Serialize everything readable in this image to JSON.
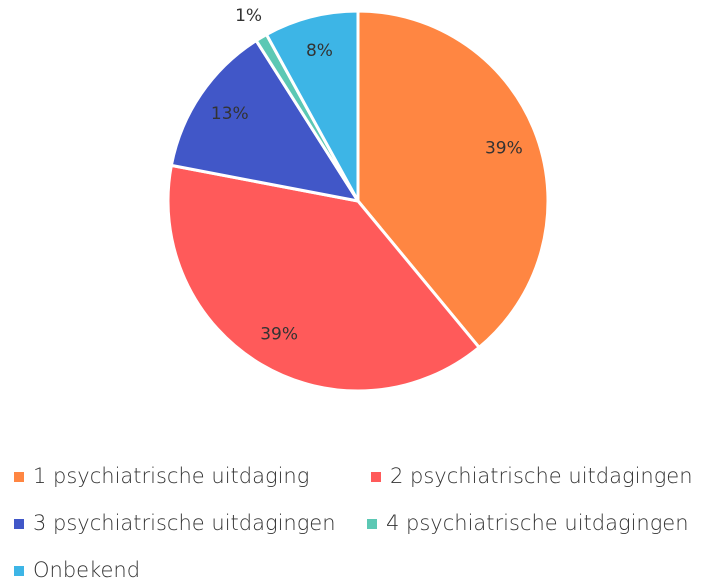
{
  "chart_data": {
    "type": "pie",
    "categories": [
      "1 psychiatrische uitdaging",
      "2 psychiatrische uitdagingen",
      "3 psychiatrische uitdagingen",
      "4 psychiatrische uitdagingen",
      "Onbekend"
    ],
    "values": [
      39,
      39,
      13,
      1,
      8
    ],
    "value_labels": [
      "39%",
      "39%",
      "13%",
      "1%",
      "8%"
    ],
    "colors": [
      "#FF8642",
      "#FF5A5A",
      "#4157C8",
      "#5CC8B4",
      "#3DB5E6"
    ],
    "legend": "bottom"
  }
}
